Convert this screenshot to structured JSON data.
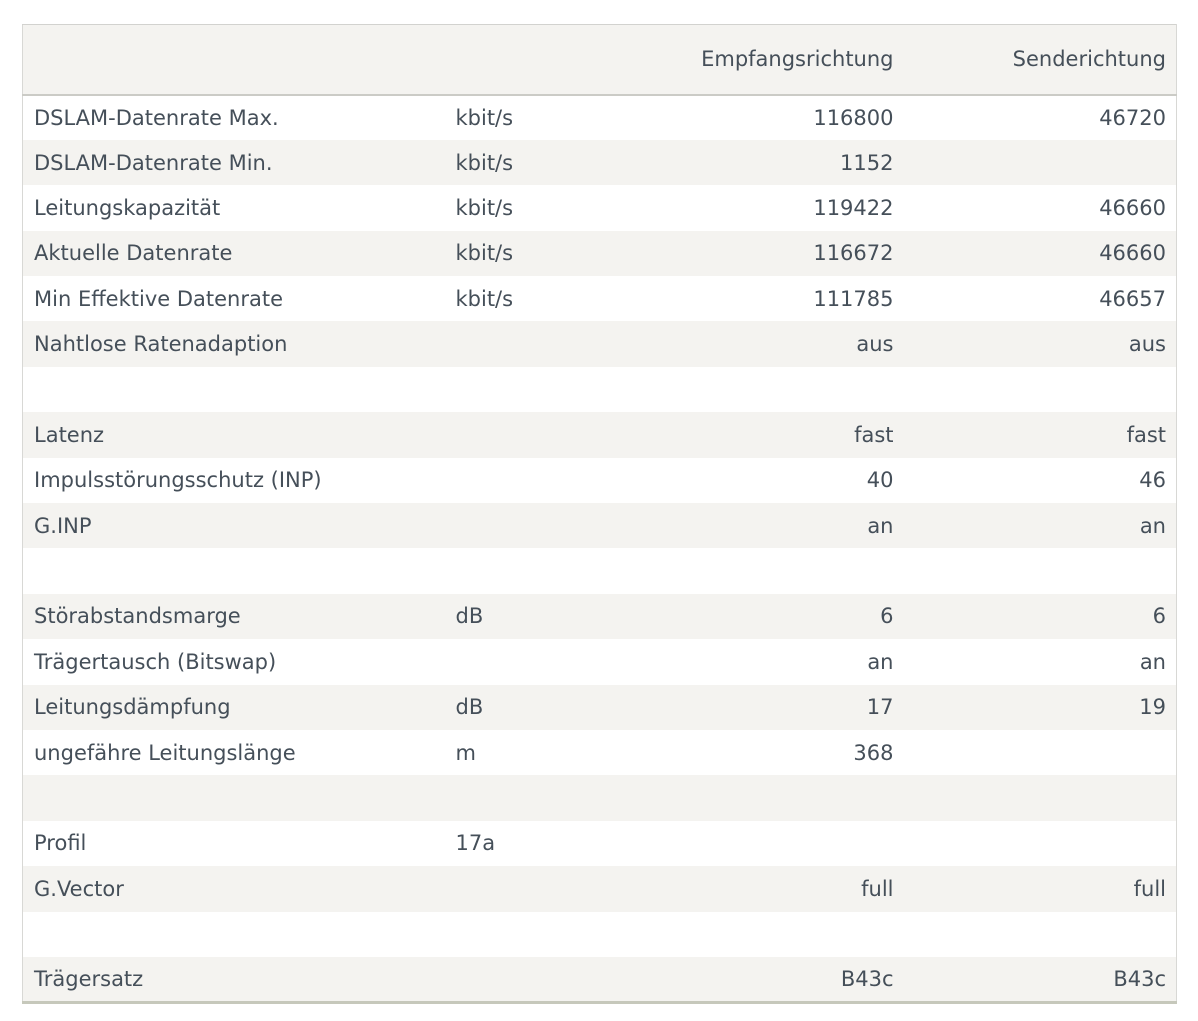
{
  "table": {
    "header": {
      "downstream": "Empfangsrichtung",
      "upstream": "Senderichtung"
    },
    "rows": [
      {
        "label": "DSLAM-Datenrate Max.",
        "unit": "kbit/s",
        "rx": "116800",
        "tx": "46720"
      },
      {
        "label": "DSLAM-Datenrate Min.",
        "unit": "kbit/s",
        "rx": "1152",
        "tx": ""
      },
      {
        "label": "Leitungskapazität",
        "unit": "kbit/s",
        "rx": "119422",
        "tx": "46660"
      },
      {
        "label": "Aktuelle Datenrate",
        "unit": "kbit/s",
        "rx": "116672",
        "tx": "46660"
      },
      {
        "label": "Min Effektive Datenrate",
        "unit": "kbit/s",
        "rx": "111785",
        "tx": "46657"
      },
      {
        "label": "Nahtlose Ratenadaption",
        "unit": "",
        "rx": "aus",
        "tx": "aus"
      },
      {
        "label": "",
        "unit": "",
        "rx": "",
        "tx": ""
      },
      {
        "label": "Latenz",
        "unit": "",
        "rx": "fast",
        "tx": "fast"
      },
      {
        "label": "Impulsstörungsschutz (INP)",
        "unit": "",
        "rx": "40",
        "tx": "46"
      },
      {
        "label": "G.INP",
        "unit": "",
        "rx": "an",
        "tx": "an"
      },
      {
        "label": "",
        "unit": "",
        "rx": "",
        "tx": ""
      },
      {
        "label": "Störabstandsmarge",
        "unit": "dB",
        "rx": "6",
        "tx": "6"
      },
      {
        "label": "Trägertausch (Bitswap)",
        "unit": "",
        "rx": "an",
        "tx": "an"
      },
      {
        "label": "Leitungsdämpfung",
        "unit": "dB",
        "rx": "17",
        "tx": "19"
      },
      {
        "label": "ungefähre Leitungslänge",
        "unit": "m",
        "rx": "368",
        "tx": ""
      },
      {
        "label": "",
        "unit": "",
        "rx": "",
        "tx": ""
      },
      {
        "label": "Profil",
        "unit": "17a",
        "rx": "",
        "tx": ""
      },
      {
        "label": "G.Vector",
        "unit": "",
        "rx": "full",
        "tx": "full"
      },
      {
        "label": "",
        "unit": "",
        "rx": "",
        "tx": ""
      },
      {
        "label": "Trägersatz",
        "unit": "",
        "rx": "B43c",
        "tx": "B43c"
      }
    ],
    "colors": {
      "stripe": "#f4f3f0",
      "text": "#454f59",
      "border": "#d8d8d5",
      "header_underline": "#cbcbc6",
      "bottom_border": "#c6c8bb",
      "background": "#ffffff"
    }
  }
}
